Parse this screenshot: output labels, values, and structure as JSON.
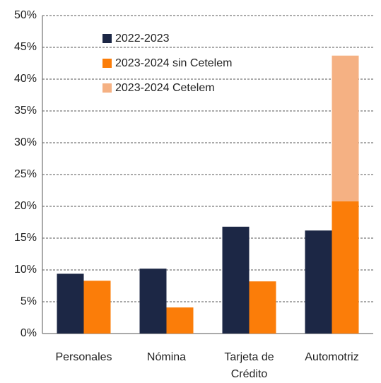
{
  "chart_data": {
    "type": "bar",
    "categories": [
      "Personales",
      "Nómina",
      "Tarjeta de Crédito",
      "Automotriz"
    ],
    "series": [
      {
        "name": "2022-2023",
        "color": "#1c2745",
        "values": [
          9.4,
          10.2,
          16.8,
          16.2
        ]
      },
      {
        "name": "2023-2024 sin Cetelem",
        "color": "#fb7d09",
        "values": [
          8.3,
          4.1,
          8.2,
          20.8
        ]
      },
      {
        "name": "2023-2024 Cetelem",
        "color": "#f5b183",
        "values": [
          null,
          null,
          null,
          22.9
        ],
        "stacked": true
      }
    ],
    "ylim": [
      0,
      50
    ],
    "yticks": [
      {
        "value": 0,
        "label": "0%"
      },
      {
        "value": 5,
        "label": "5%"
      },
      {
        "value": 10,
        "label": "10%"
      },
      {
        "value": 15,
        "label": "15%"
      },
      {
        "value": 20,
        "label": "20%"
      },
      {
        "value": 25,
        "label": "25%"
      },
      {
        "value": 30,
        "label": "30%"
      },
      {
        "value": 35,
        "label": "35%"
      },
      {
        "value": 40,
        "label": "40%"
      },
      {
        "value": 45,
        "label": "45%"
      },
      {
        "value": 50,
        "label": "50%"
      }
    ],
    "grid": true,
    "legend": "upper left"
  }
}
